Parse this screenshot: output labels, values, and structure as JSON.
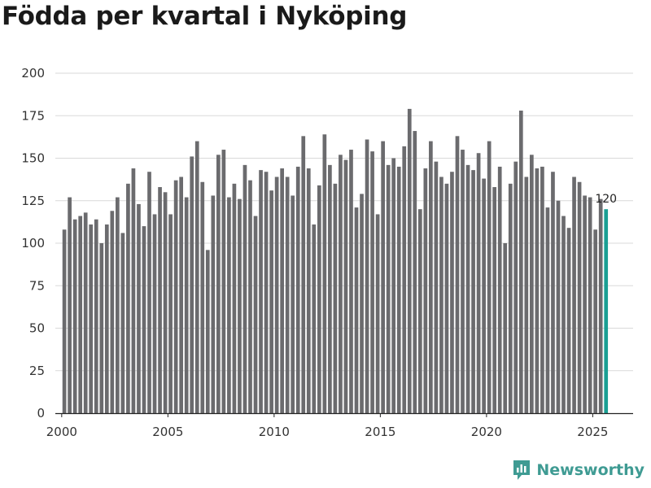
{
  "colors": {
    "bar": "#6b6b6e",
    "highlight": "#1a9f93",
    "grid": "#d9d9d9",
    "axis": "#222222",
    "brand": "#3f9b93"
  },
  "brand": {
    "name": "Newsworthy",
    "icon": "chart-bars-icon"
  },
  "chart_data": {
    "type": "bar",
    "title": "Födda per kvartal i Nyköping",
    "xlabel": "",
    "ylabel": "",
    "ylim": [
      0,
      200
    ],
    "yticks": [
      "0",
      "25",
      "50",
      "75",
      "100",
      "125",
      "150",
      "175",
      "200"
    ],
    "xlim": [
      1999.7,
      2026.9
    ],
    "xticks": [
      "2000",
      "2005",
      "2010",
      "2015",
      "2020",
      "2025"
    ],
    "start_year": 2000,
    "start_quarter": 1,
    "values": [
      108,
      127,
      114,
      116,
      118,
      111,
      114,
      100,
      111,
      119,
      127,
      106,
      135,
      144,
      123,
      110,
      142,
      117,
      133,
      130,
      117,
      137,
      139,
      127,
      151,
      160,
      136,
      96,
      128,
      152,
      155,
      127,
      135,
      126,
      146,
      137,
      116,
      143,
      142,
      131,
      139,
      144,
      139,
      128,
      145,
      163,
      144,
      111,
      134,
      164,
      146,
      135,
      152,
      149,
      155,
      121,
      129,
      161,
      154,
      117,
      160,
      146,
      150,
      145,
      157,
      179,
      166,
      120,
      144,
      160,
      148,
      139,
      135,
      142,
      163,
      155,
      146,
      143,
      153,
      138,
      160,
      133,
      145,
      100,
      135,
      148,
      178,
      139,
      152,
      144,
      145,
      121,
      142,
      125,
      116,
      109,
      139,
      136,
      128,
      127,
      108,
      126,
      120
    ],
    "highlight_last": true,
    "annotation": "120"
  }
}
